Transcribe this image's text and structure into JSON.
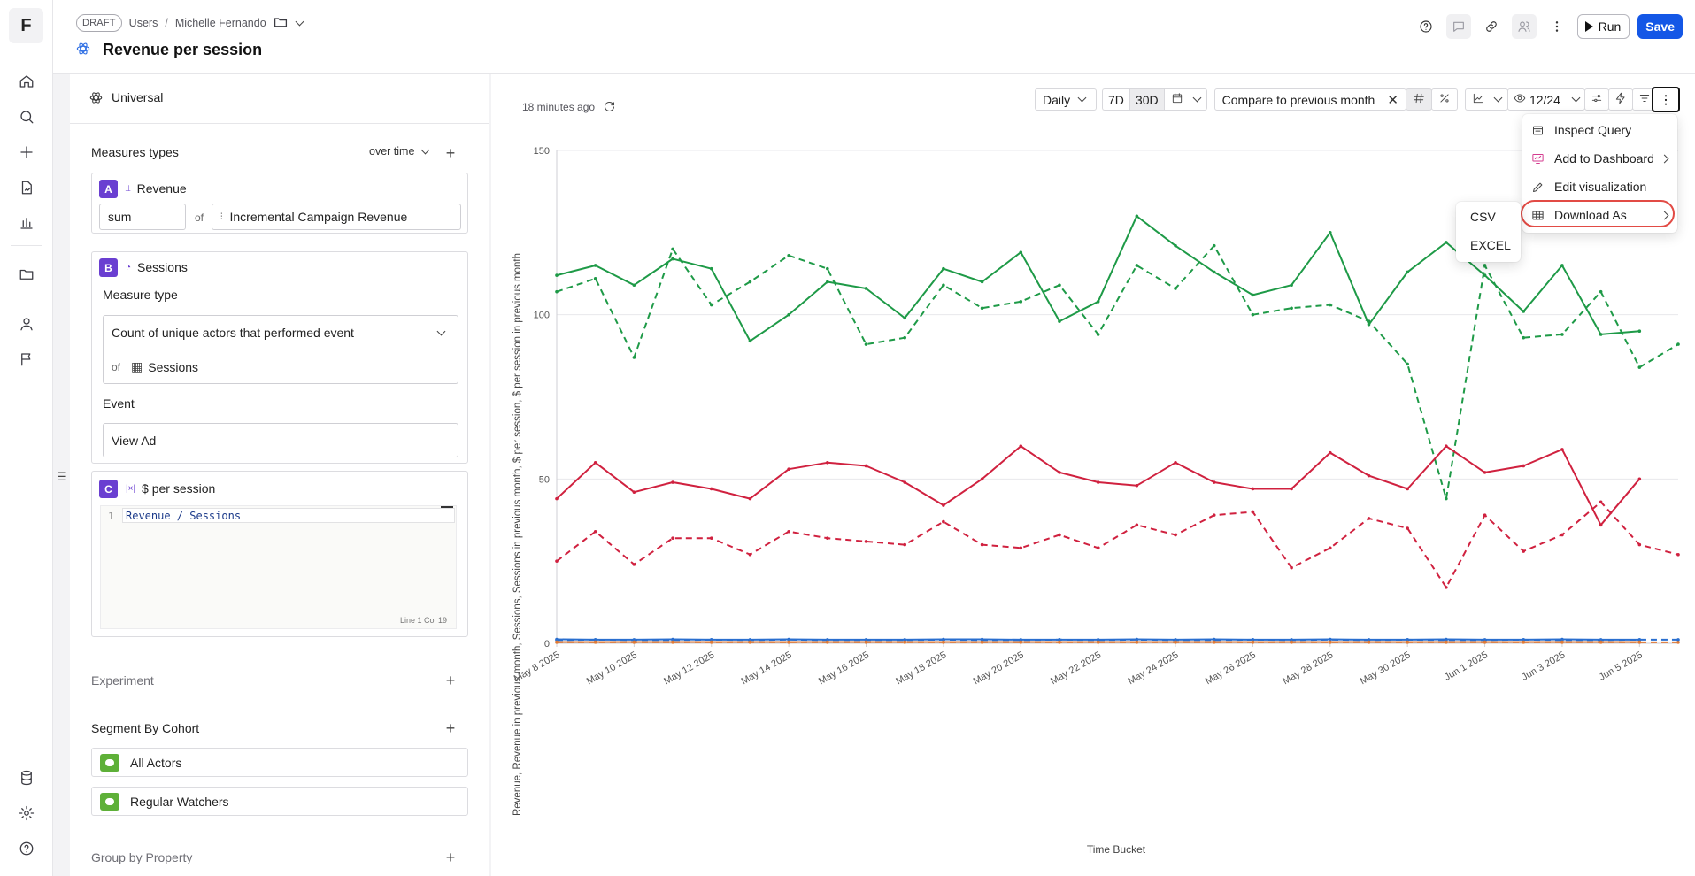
{
  "app": {
    "logo": "F"
  },
  "rail": {
    "icons": [
      "home-icon",
      "search-icon",
      "plus-icon",
      "file-chart-icon",
      "chart-bars-icon",
      "folder-icon",
      "user-icon",
      "flag-icon",
      "database-icon",
      "settings-icon",
      "help-icon"
    ]
  },
  "header": {
    "draft": "DRAFT",
    "crumbs": [
      "Users",
      "Michelle Fernando"
    ],
    "crumb_sep": "/",
    "title": "Revenue per session",
    "run_label": "Run",
    "save_label": "Save"
  },
  "builder": {
    "universal": "Universal",
    "measures_title": "Measures types",
    "over_time": "over time",
    "measure_a": {
      "badge": "A",
      "name": "Revenue",
      "agg": "sum",
      "of": "of",
      "property": "Incremental Campaign Revenue"
    },
    "measure_b": {
      "badge": "B",
      "name": "Sessions",
      "measure_type_label": "Measure type",
      "measure_type": "Count of unique actors that performed event",
      "of": "of",
      "source": "Sessions",
      "event_label": "Event",
      "event": "View Ad"
    },
    "measure_c": {
      "badge": "C",
      "name": "$ per session",
      "line_no": "1",
      "formula": "Revenue / Sessions",
      "cursor": "Line 1 Col 19"
    },
    "experiment": "Experiment",
    "segment": "Segment By Cohort",
    "cohorts": [
      "All Actors",
      "Regular Watchers"
    ],
    "group_by": "Group by Property"
  },
  "toolbar": {
    "updated": "18 minutes ago",
    "interval": "Daily",
    "range_7d": "7D",
    "range_30d": "30D",
    "compare": "Compare to previous month",
    "visible": "12/24"
  },
  "menu": {
    "items": [
      "Inspect Query",
      "Add to Dashboard",
      "Edit visualization",
      "Download As"
    ],
    "download_options": [
      "CSV",
      "EXCEL"
    ]
  },
  "colors": {
    "green": "#1e9a47",
    "red": "#d0213f",
    "blue": "#2a6fcf",
    "accent": "#1457e6",
    "badge": "#6a3fd1"
  },
  "chart_data": {
    "type": "line",
    "ylabel": "Revenue, Revenue in previous month, Sessions, Sessions in previous month, $ per session, $ per session in previous month",
    "xlabel": "Time Bucket",
    "ylim": [
      0,
      150
    ],
    "yticks": [
      0,
      50,
      100,
      150
    ],
    "x_tick_labels": [
      "May 8 2025",
      "May 10 2025",
      "May 12 2025",
      "May 14 2025",
      "May 16 2025",
      "May 18 2025",
      "May 20 2025",
      "May 22 2025",
      "May 24 2025",
      "May 26 2025",
      "May 28 2025",
      "May 30 2025",
      "Jun 1 2025",
      "Jun 3 2025",
      "Jun 5 2025"
    ],
    "x_dates": [
      "May 8 2025",
      "May 9 2025",
      "May 10 2025",
      "May 11 2025",
      "May 12 2025",
      "May 13 2025",
      "May 14 2025",
      "May 15 2025",
      "May 16 2025",
      "May 17 2025",
      "May 18 2025",
      "May 19 2025",
      "May 20 2025",
      "May 21 2025",
      "May 22 2025",
      "May 23 2025",
      "May 24 2025",
      "May 25 2025",
      "May 26 2025",
      "May 27 2025",
      "May 28 2025",
      "May 29 2025",
      "May 30 2025",
      "May 31 2025",
      "Jun 1 2025",
      "Jun 2 2025",
      "Jun 3 2025",
      "Jun 4 2025",
      "Jun 5 2025",
      "Jun 6 2025"
    ],
    "series": [
      {
        "color": "#1e9a47",
        "dash": false,
        "values": [
          112,
          115,
          109,
          117,
          114,
          92,
          100,
          110,
          108,
          99,
          114,
          110,
          119,
          98,
          104,
          130,
          121,
          113,
          106,
          109,
          125,
          97,
          113,
          122,
          112,
          101,
          115,
          94,
          95,
          null
        ]
      },
      {
        "color": "#1e9a47",
        "dash": true,
        "values": [
          107,
          111,
          87,
          120,
          103,
          110,
          118,
          114,
          91,
          93,
          109,
          102,
          104,
          109,
          94,
          115,
          108,
          121,
          100,
          102,
          103,
          98,
          85,
          44,
          115,
          93,
          94,
          107,
          84,
          91
        ]
      },
      {
        "color": "#d0213f",
        "dash": false,
        "values": [
          44,
          55,
          46,
          49,
          47,
          44,
          53,
          55,
          54,
          49,
          42,
          50,
          60,
          52,
          49,
          48,
          55,
          49,
          47,
          47,
          58,
          51,
          47,
          60,
          52,
          54,
          59,
          36,
          50,
          null
        ]
      },
      {
        "color": "#d0213f",
        "dash": true,
        "values": [
          25,
          34,
          24,
          32,
          32,
          27,
          34,
          32,
          31,
          30,
          37,
          30,
          29,
          33,
          29,
          36,
          33,
          39,
          40,
          23,
          29,
          38,
          35,
          17,
          39,
          28,
          33,
          43,
          30,
          27
        ]
      },
      {
        "color": "#2a6fcf",
        "dash": false,
        "values": [
          1.2,
          1.1,
          1.1,
          1.2,
          1.1,
          1.1,
          1.2,
          1.1,
          1.1,
          1.1,
          1.2,
          1.2,
          1.1,
          1.1,
          1.1,
          1.2,
          1.1,
          1.2,
          1.1,
          1.1,
          1.2,
          1.1,
          1.1,
          1.2,
          1.1,
          1.1,
          1.2,
          1.1,
          1.1,
          null
        ]
      },
      {
        "color": "#2a6fcf",
        "dash": true,
        "values": [
          1.0,
          1.1,
          1.0,
          1.0,
          1.1,
          1.0,
          1.1,
          1.0,
          1.0,
          1.0,
          1.1,
          1.0,
          1.0,
          1.1,
          1.0,
          1.1,
          1.0,
          1.0,
          1.1,
          1.0,
          1.1,
          1.0,
          1.1,
          1.0,
          1.0,
          1.1,
          1.0,
          1.0,
          1.1,
          1.1
        ]
      },
      {
        "color": "#e07a36",
        "dash": false,
        "values": [
          0.4,
          0.4,
          0.4,
          0.4,
          0.4,
          0.4,
          0.4,
          0.4,
          0.4,
          0.4,
          0.4,
          0.4,
          0.4,
          0.4,
          0.4,
          0.4,
          0.4,
          0.4,
          0.4,
          0.4,
          0.4,
          0.4,
          0.4,
          0.4,
          0.4,
          0.4,
          0.4,
          0.4,
          0.4,
          null
        ]
      },
      {
        "color": "#e07a36",
        "dash": true,
        "values": [
          0.3,
          0.3,
          0.3,
          0.3,
          0.3,
          0.3,
          0.3,
          0.3,
          0.3,
          0.3,
          0.3,
          0.3,
          0.3,
          0.3,
          0.3,
          0.3,
          0.3,
          0.3,
          0.3,
          0.3,
          0.3,
          0.3,
          0.3,
          0.3,
          0.3,
          0.3,
          0.3,
          0.3,
          0.3,
          0.3
        ]
      }
    ]
  }
}
